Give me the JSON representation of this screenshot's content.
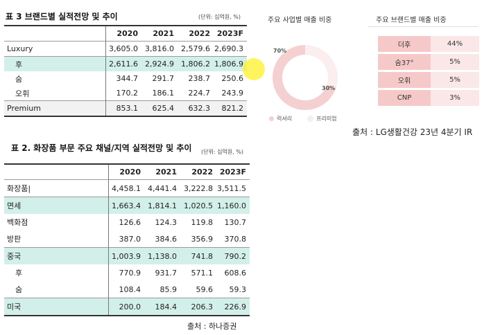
{
  "table1": {
    "title": "표 3  브랜드별 실적전망 및 추이",
    "unit": "(단위: 십억원, %)",
    "years": [
      "2020",
      "2021",
      "2022",
      "2023F"
    ],
    "rows": [
      {
        "label": "Luxury",
        "values": [
          "3,605.0",
          "3,816.0",
          "2,579.6",
          "2,690.3"
        ]
      },
      {
        "label": "후",
        "values": [
          "2,611.6",
          "2,924.9",
          "1,806.2",
          "1,806.9"
        ]
      },
      {
        "label": "숨",
        "values": [
          "344.7",
          "291.7",
          "238.7",
          "250.6"
        ]
      },
      {
        "label": "오휘",
        "values": [
          "170.2",
          "186.1",
          "224.7",
          "243.9"
        ]
      },
      {
        "label": "Premium",
        "values": [
          "853.1",
          "625.4",
          "632.3",
          "821.2"
        ]
      }
    ]
  },
  "table2": {
    "title": "표 2. 화장품 부문 주요 채널/지역 실적전망 및 추이",
    "unit": "(단위: 십억원, %)",
    "years": [
      "2020",
      "2021",
      "2022",
      "2023F"
    ],
    "rows": [
      {
        "label": "화장품|",
        "values": [
          "4,458.1",
          "4,441.4",
          "3,222.8",
          "3,511.5"
        ]
      },
      {
        "label": "면세",
        "values": [
          "1,663.4",
          "1,814.1",
          "1,020.5",
          "1,160.0"
        ]
      },
      {
        "label": "백화점",
        "values": [
          "126.6",
          "124.3",
          "119.8",
          "130.7"
        ]
      },
      {
        "label": "방판",
        "values": [
          "387.0",
          "384.6",
          "356.9",
          "370.8"
        ]
      },
      {
        "label": "중국",
        "values": [
          "1,003.9",
          "1,138.0",
          "741.8",
          "790.2"
        ]
      },
      {
        "label": "후",
        "values": [
          "770.9",
          "931.7",
          "571.1",
          "608.6"
        ]
      },
      {
        "label": "숨",
        "values": [
          "108.4",
          "85.9",
          "59.6",
          "59.3"
        ]
      },
      {
        "label": "미국",
        "values": [
          "200.0",
          "184.4",
          "206.3",
          "226.9"
        ]
      }
    ]
  },
  "source_hana": "출처 : 하나증권",
  "business_chart": {
    "title": "주요 사업별 매출 비중",
    "colors": {
      "luxury": "#f4d0d1",
      "premium": "#fbeeee"
    },
    "chart_data": {
      "type": "pie",
      "categories": [
        "럭셔리",
        "프리미엄"
      ],
      "values": [
        70,
        30
      ],
      "data_labels": [
        "70%",
        "30%"
      ]
    }
  },
  "brand_share": {
    "title": "주요 브랜드별 매출 비중",
    "rows": [
      {
        "brand": "더후",
        "pct": "44%"
      },
      {
        "brand": "숨37°",
        "pct": "5%"
      },
      {
        "brand": "오휘",
        "pct": "5%"
      },
      {
        "brand": "CNP",
        "pct": "3%"
      }
    ]
  },
  "source_lg": "출처 : LG생활건강 23년 4분기 IR"
}
